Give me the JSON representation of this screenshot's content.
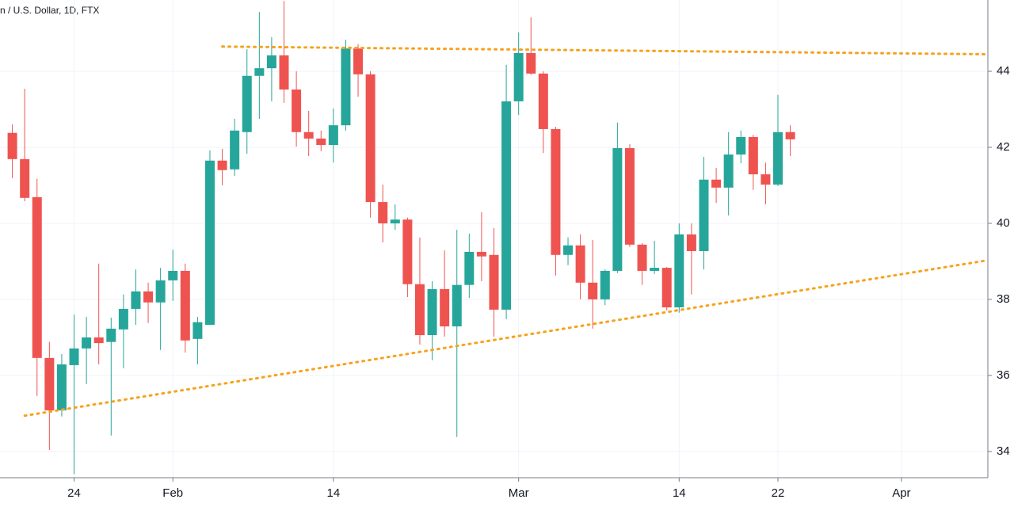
{
  "chart_data": {
    "type": "candlestick",
    "title": "n / U.S. Dollar, 1D, FTX",
    "x": [
      "Jan 19",
      "Jan 20",
      "Jan 21",
      "Jan 22",
      "Jan 23",
      "Jan 24",
      "Jan 25",
      "Jan 26",
      "Jan 27",
      "Jan 28",
      "Jan 29",
      "Jan 30",
      "Jan 31",
      "Feb 1",
      "Feb 2",
      "Feb 3",
      "Feb 4",
      "Feb 5",
      "Feb 6",
      "Feb 7",
      "Feb 8",
      "Feb 9",
      "Feb 10",
      "Feb 11",
      "Feb 12",
      "Feb 13",
      "Feb 14",
      "Feb 15",
      "Feb 16",
      "Feb 17",
      "Feb 18",
      "Feb 19",
      "Feb 20",
      "Feb 21",
      "Feb 22",
      "Feb 23",
      "Feb 24",
      "Feb 25",
      "Feb 26",
      "Feb 27",
      "Feb 28",
      "Mar 1",
      "Mar 2",
      "Mar 3",
      "Mar 4",
      "Mar 5",
      "Mar 6",
      "Mar 7",
      "Mar 8",
      "Mar 9",
      "Mar 10",
      "Mar 11",
      "Mar 12",
      "Mar 13",
      "Mar 14",
      "Mar 15",
      "Mar 16",
      "Mar 17",
      "Mar 18",
      "Mar 19",
      "Mar 20",
      "Mar 21",
      "Mar 22",
      "Mar 23"
    ],
    "open": [
      42.38,
      41.69,
      40.69,
      36.46,
      35.08,
      36.27,
      36.71,
      37.0,
      36.88,
      37.21,
      37.75,
      38.21,
      37.92,
      38.5,
      38.75,
      36.96,
      37.33,
      41.65,
      41.42,
      42.4,
      43.88,
      44.08,
      44.42,
      43.52,
      42.4,
      42.23,
      42.06,
      42.58,
      44.6,
      43.92,
      40.56,
      40.0,
      40.1,
      38.4,
      37.06,
      38.27,
      37.29,
      38.38,
      39.25,
      39.17,
      37.73,
      43.21,
      44.48,
      43.94,
      42.48,
      39.17,
      39.42,
      38.44,
      38.0,
      38.75,
      41.98,
      39.44,
      38.75,
      38.83,
      37.79,
      39.71,
      39.27,
      41.15,
      40.94,
      41.81,
      42.27,
      41.29,
      41.02,
      42.4
    ],
    "high": [
      42.6,
      43.54,
      41.17,
      36.88,
      36.56,
      37.6,
      37.54,
      38.94,
      37.52,
      38.13,
      38.79,
      38.44,
      38.83,
      39.31,
      38.94,
      37.54,
      41.92,
      41.96,
      42.75,
      44.58,
      45.56,
      44.9,
      45.85,
      44.0,
      42.96,
      42.44,
      43.02,
      44.83,
      44.71,
      44.0,
      41.02,
      40.5,
      40.15,
      39.63,
      38.48,
      39.29,
      39.83,
      39.73,
      40.29,
      39.88,
      44.17,
      45.02,
      45.42,
      44.0,
      42.54,
      39.63,
      39.71,
      39.56,
      38.79,
      42.65,
      42.08,
      39.48,
      39.54,
      38.85,
      40.0,
      40.0,
      41.75,
      41.46,
      42.4,
      42.44,
      42.33,
      41.6,
      43.38,
      42.58
    ],
    "low": [
      41.19,
      40.58,
      35.46,
      34.04,
      34.92,
      33.4,
      35.77,
      36.29,
      34.42,
      36.19,
      37.33,
      37.38,
      36.67,
      37.96,
      36.6,
      36.29,
      37.33,
      41.0,
      41.25,
      41.83,
      42.75,
      43.21,
      43.17,
      42.02,
      41.77,
      41.9,
      41.6,
      42.44,
      43.33,
      40.15,
      39.5,
      39.83,
      38.06,
      36.81,
      36.4,
      37.02,
      34.38,
      38.04,
      38.48,
      37.02,
      37.48,
      42.85,
      43.9,
      41.85,
      38.63,
      38.9,
      38.0,
      37.23,
      37.85,
      38.69,
      39.38,
      38.38,
      38.67,
      37.71,
      37.65,
      38.13,
      38.79,
      40.54,
      40.21,
      41.58,
      40.88,
      40.5,
      40.98,
      41.77
    ],
    "close": [
      41.69,
      40.67,
      36.46,
      35.08,
      36.29,
      36.71,
      37.0,
      36.85,
      37.23,
      37.75,
      38.21,
      37.92,
      38.5,
      38.75,
      36.92,
      37.4,
      41.65,
      41.4,
      42.44,
      43.88,
      44.08,
      44.42,
      43.52,
      42.4,
      42.23,
      42.06,
      42.58,
      44.6,
      43.92,
      40.56,
      40.0,
      40.1,
      38.4,
      37.06,
      38.27,
      37.29,
      38.38,
      39.25,
      39.13,
      37.73,
      43.21,
      44.48,
      43.94,
      42.48,
      39.17,
      39.42,
      38.44,
      38.0,
      38.75,
      41.98,
      39.44,
      38.75,
      38.83,
      37.79,
      39.71,
      39.27,
      41.15,
      40.94,
      41.81,
      42.27,
      41.29,
      41.02,
      42.4,
      42.21
    ],
    "up_color": "#26a69a",
    "down_color": "#ef5350",
    "xlim": [
      "Jan 18",
      "Apr 8"
    ],
    "xticks": [
      {
        "value": "Jan 24",
        "label": "24"
      },
      {
        "value": "Feb 1",
        "label": "Feb"
      },
      {
        "value": "Feb 14",
        "label": "14"
      },
      {
        "value": "Mar 1",
        "label": "Mar"
      },
      {
        "value": "Mar 14",
        "label": "14"
      },
      {
        "value": "Mar 22",
        "label": "22"
      },
      {
        "value": "Apr 1",
        "label": "Apr"
      }
    ],
    "ylim": [
      33.31,
      45.875
    ],
    "yticks": [
      34,
      36,
      38,
      40,
      42,
      44
    ],
    "grid": true,
    "trendlines": [
      {
        "from": {
          "x": "Feb 5",
          "y": 44.65
        },
        "to": {
          "x": "Mar 23",
          "y": 44.5
        },
        "color": "#f7a21b"
      },
      {
        "from": {
          "x": "Jan 20",
          "y": 34.94
        },
        "to": {
          "x": "Mar 23",
          "y": 38.19
        },
        "color": "#f7a21b"
      }
    ]
  }
}
